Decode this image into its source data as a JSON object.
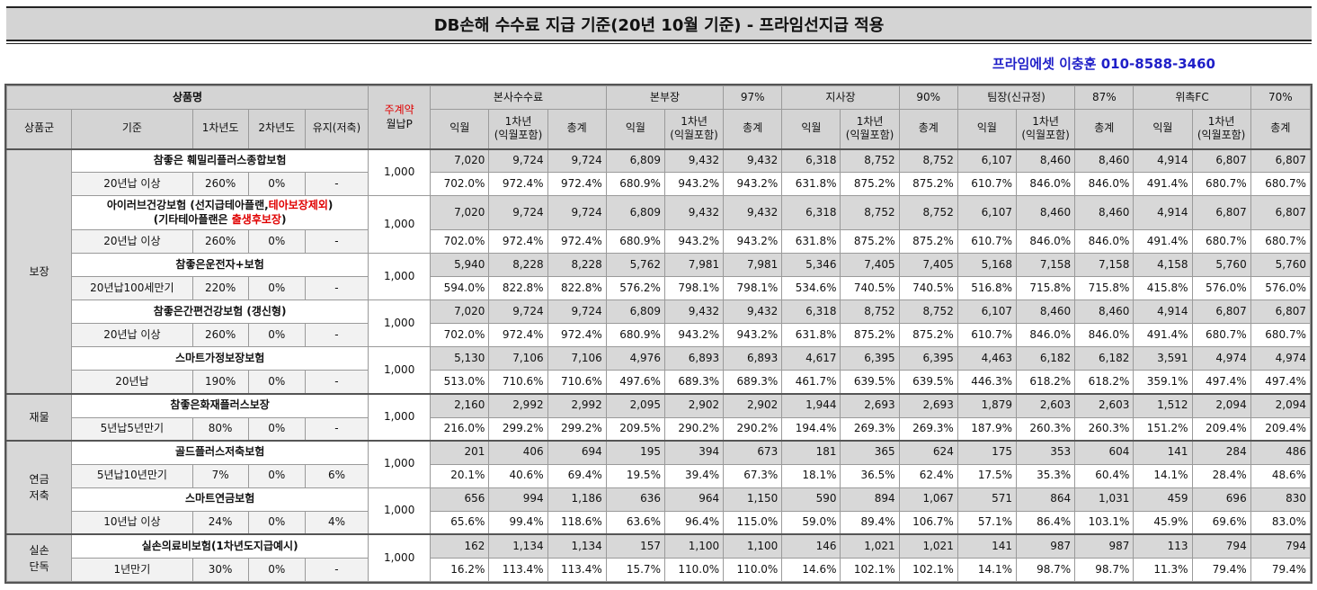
{
  "title": "DB손해 수수료 지급 기준(20년 10월 기준) - 프라임선지급 적용",
  "contact": "프라임에셋 이충훈 010-8588-3460",
  "colors": {
    "header_bg": "#d4d4d4",
    "amount_bg": "#d8d8d8",
    "contact": "#1f1fc8",
    "highlight": "#e00000"
  },
  "header": {
    "product_name": "상품명",
    "main_contract_1": "주계약",
    "main_contract_2": "월납P",
    "product_group": "상품군",
    "criteria": "기준",
    "year1": "1차년도",
    "year2": "2차년도",
    "maintain": "유지(저축)",
    "levels": [
      {
        "name": "본사수수료",
        "rate": ""
      },
      {
        "name": "본부장",
        "rate": "97%"
      },
      {
        "name": "지사장",
        "rate": "90%"
      },
      {
        "name": "팀장(신규정)",
        "rate": "87%"
      },
      {
        "name": "위촉FC",
        "rate": "70%"
      }
    ],
    "sub_month": "익월",
    "sub_year1_a": "1차년",
    "sub_year1_b": "(익월포함)",
    "sub_total": "총계"
  },
  "groups": [
    {
      "name": "보장",
      "products": [
        {
          "name": "참좋은 훼밀리플러스종합보험",
          "criteria": "20년납 이상",
          "y1": "260%",
          "y2": "0%",
          "maintain": "-",
          "premium": "1,000",
          "amounts": [
            "7,020",
            "9,724",
            "9,724",
            "6,809",
            "9,432",
            "9,432",
            "6,318",
            "8,752",
            "8,752",
            "6,107",
            "8,460",
            "8,460",
            "4,914",
            "6,807",
            "6,807"
          ],
          "pcts": [
            "702.0%",
            "972.4%",
            "972.4%",
            "680.9%",
            "943.2%",
            "943.2%",
            "631.8%",
            "875.2%",
            "875.2%",
            "610.7%",
            "846.0%",
            "846.0%",
            "491.4%",
            "680.7%",
            "680.7%"
          ]
        },
        {
          "name_line1_a": "아이러브건강보험 (선지급테아플랜,",
          "name_line1_b": "테아보장제외",
          "name_line1_c": ")",
          "name_line2_a": "(기타테아플랜은 ",
          "name_line2_b": "출생후보장",
          "name_line2_c": ")",
          "criteria": "20년납 이상",
          "y1": "260%",
          "y2": "0%",
          "maintain": "-",
          "premium": "1,000",
          "amounts": [
            "7,020",
            "9,724",
            "9,724",
            "6,809",
            "9,432",
            "9,432",
            "6,318",
            "8,752",
            "8,752",
            "6,107",
            "8,460",
            "8,460",
            "4,914",
            "6,807",
            "6,807"
          ],
          "pcts": [
            "702.0%",
            "972.4%",
            "972.4%",
            "680.9%",
            "943.2%",
            "943.2%",
            "631.8%",
            "875.2%",
            "875.2%",
            "610.7%",
            "846.0%",
            "846.0%",
            "491.4%",
            "680.7%",
            "680.7%"
          ]
        },
        {
          "name": "참좋은운전자+보험",
          "criteria": "20년납100세만기",
          "y1": "220%",
          "y2": "0%",
          "maintain": "-",
          "premium": "1,000",
          "amounts": [
            "5,940",
            "8,228",
            "8,228",
            "5,762",
            "7,981",
            "7,981",
            "5,346",
            "7,405",
            "7,405",
            "5,168",
            "7,158",
            "7,158",
            "4,158",
            "5,760",
            "5,760"
          ],
          "pcts": [
            "594.0%",
            "822.8%",
            "822.8%",
            "576.2%",
            "798.1%",
            "798.1%",
            "534.6%",
            "740.5%",
            "740.5%",
            "516.8%",
            "715.8%",
            "715.8%",
            "415.8%",
            "576.0%",
            "576.0%"
          ]
        },
        {
          "name": "참좋은간편건강보험 (갱신형)",
          "criteria": "20년납 이상",
          "y1": "260%",
          "y2": "0%",
          "maintain": "-",
          "premium": "1,000",
          "amounts": [
            "7,020",
            "9,724",
            "9,724",
            "6,809",
            "9,432",
            "9,432",
            "6,318",
            "8,752",
            "8,752",
            "6,107",
            "8,460",
            "8,460",
            "4,914",
            "6,807",
            "6,807"
          ],
          "pcts": [
            "702.0%",
            "972.4%",
            "972.4%",
            "680.9%",
            "943.2%",
            "943.2%",
            "631.8%",
            "875.2%",
            "875.2%",
            "610.7%",
            "846.0%",
            "846.0%",
            "491.4%",
            "680.7%",
            "680.7%"
          ]
        },
        {
          "name": "스마트가정보장보험",
          "criteria": "20년납",
          "y1": "190%",
          "y2": "0%",
          "maintain": "-",
          "premium": "1,000",
          "amounts": [
            "5,130",
            "7,106",
            "7,106",
            "4,976",
            "6,893",
            "6,893",
            "4,617",
            "6,395",
            "6,395",
            "4,463",
            "6,182",
            "6,182",
            "3,591",
            "4,974",
            "4,974"
          ],
          "pcts": [
            "513.0%",
            "710.6%",
            "710.6%",
            "497.6%",
            "689.3%",
            "689.3%",
            "461.7%",
            "639.5%",
            "639.5%",
            "446.3%",
            "618.2%",
            "618.2%",
            "359.1%",
            "497.4%",
            "497.4%"
          ]
        }
      ]
    },
    {
      "name": "재물",
      "products": [
        {
          "name": "참좋은화재플러스보장",
          "criteria": "5년납5년만기",
          "y1": "80%",
          "y2": "0%",
          "maintain": "-",
          "premium": "1,000",
          "amounts": [
            "2,160",
            "2,992",
            "2,992",
            "2,095",
            "2,902",
            "2,902",
            "1,944",
            "2,693",
            "2,693",
            "1,879",
            "2,603",
            "2,603",
            "1,512",
            "2,094",
            "2,094"
          ],
          "pcts": [
            "216.0%",
            "299.2%",
            "299.2%",
            "209.5%",
            "290.2%",
            "290.2%",
            "194.4%",
            "269.3%",
            "269.3%",
            "187.9%",
            "260.3%",
            "260.3%",
            "151.2%",
            "209.4%",
            "209.4%"
          ]
        }
      ]
    },
    {
      "name_1": "연금",
      "name_2": "저축",
      "products": [
        {
          "name": "골드플러스저축보험",
          "criteria": "5년납10년만기",
          "y1": "7%",
          "y2": "0%",
          "maintain": "6%",
          "premium": "1,000",
          "amounts": [
            "201",
            "406",
            "694",
            "195",
            "394",
            "673",
            "181",
            "365",
            "624",
            "175",
            "353",
            "604",
            "141",
            "284",
            "486"
          ],
          "pcts": [
            "20.1%",
            "40.6%",
            "69.4%",
            "19.5%",
            "39.4%",
            "67.3%",
            "18.1%",
            "36.5%",
            "62.4%",
            "17.5%",
            "35.3%",
            "60.4%",
            "14.1%",
            "28.4%",
            "48.6%"
          ]
        },
        {
          "name": "스마트연금보험",
          "criteria": "10년납 이상",
          "y1": "24%",
          "y2": "0%",
          "maintain": "4%",
          "premium": "1,000",
          "amounts": [
            "656",
            "994",
            "1,186",
            "636",
            "964",
            "1,150",
            "590",
            "894",
            "1,067",
            "571",
            "864",
            "1,031",
            "459",
            "696",
            "830"
          ],
          "pcts": [
            "65.6%",
            "99.4%",
            "118.6%",
            "63.6%",
            "96.4%",
            "115.0%",
            "59.0%",
            "89.4%",
            "106.7%",
            "57.1%",
            "86.4%",
            "103.1%",
            "45.9%",
            "69.6%",
            "83.0%"
          ]
        }
      ]
    },
    {
      "name_1": "실손",
      "name_2": "단독",
      "products": [
        {
          "name": "실손의료비보험(1차년도지급예시)",
          "criteria": "1년만기",
          "y1": "30%",
          "y2": "0%",
          "maintain": "-",
          "premium": "1,000",
          "amounts": [
            "162",
            "1,134",
            "1,134",
            "157",
            "1,100",
            "1,100",
            "146",
            "1,021",
            "1,021",
            "141",
            "987",
            "987",
            "113",
            "794",
            "794"
          ],
          "pcts": [
            "16.2%",
            "113.4%",
            "113.4%",
            "15.7%",
            "110.0%",
            "110.0%",
            "14.6%",
            "102.1%",
            "102.1%",
            "14.1%",
            "98.7%",
            "98.7%",
            "11.3%",
            "79.4%",
            "79.4%"
          ]
        }
      ]
    }
  ]
}
